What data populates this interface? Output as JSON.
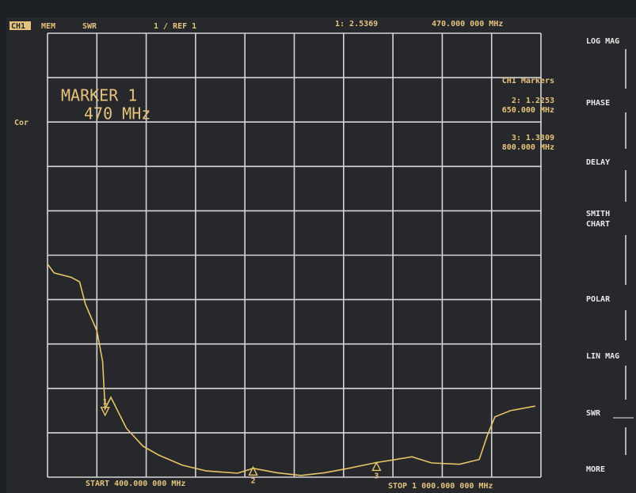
{
  "header": {
    "channel": "CH1",
    "mem": "MEM",
    "format": "SWR",
    "scale": "1 / REF 1",
    "active_readout": "1: 2.5369",
    "active_freq": "470.000 000 MHz",
    "correction": "Cor"
  },
  "marker_box": {
    "title": "MARKER 1",
    "freq": "470 MHz"
  },
  "marker_list": {
    "title": "CH1 Markers",
    "entries": [
      {
        "value": "2: 1.2253",
        "freq": "650.000 MHz"
      },
      {
        "value": "3: 1.3309",
        "freq": "800.000 MHz"
      }
    ]
  },
  "footer": {
    "start": "START 400.000 000 MHz",
    "stop": "STOP 1 000.000 000 MHz"
  },
  "softkeys": [
    "LOG MAG",
    "PHASE",
    "DELAY",
    "SMITH",
    "CHART",
    "POLAR",
    "LIN MAG",
    "SWR",
    "MORE"
  ],
  "chart_data": {
    "type": "line",
    "xlim": [
      400,
      1000
    ],
    "ylim": [
      1,
      11
    ],
    "x": [
      400,
      408,
      429,
      439,
      446,
      453,
      460,
      467,
      470,
      477,
      496,
      516,
      535,
      564,
      593,
      631,
      650,
      679,
      708,
      737,
      766,
      800,
      824,
      843,
      867,
      901,
      925,
      935,
      944,
      963,
      993
    ],
    "series": [
      {
        "name": "SWR",
        "color": "#e8c468",
        "values": [
          5.8,
          5.6,
          5.5,
          5.4,
          4.9,
          4.6,
          4.3,
          3.6,
          2.54,
          2.8,
          2.1,
          1.7,
          1.5,
          1.27,
          1.14,
          1.09,
          1.2,
          1.1,
          1.04,
          1.1,
          1.2,
          1.33,
          1.4,
          1.46,
          1.32,
          1.29,
          1.4,
          1.95,
          2.36,
          2.5,
          2.6
        ]
      }
    ],
    "markers": [
      {
        "label": "1",
        "x": 470,
        "value": 2.5369
      },
      {
        "label": "2",
        "x": 650,
        "value": 1.2253
      },
      {
        "label": "3",
        "x": 800,
        "value": 1.3309
      }
    ]
  }
}
